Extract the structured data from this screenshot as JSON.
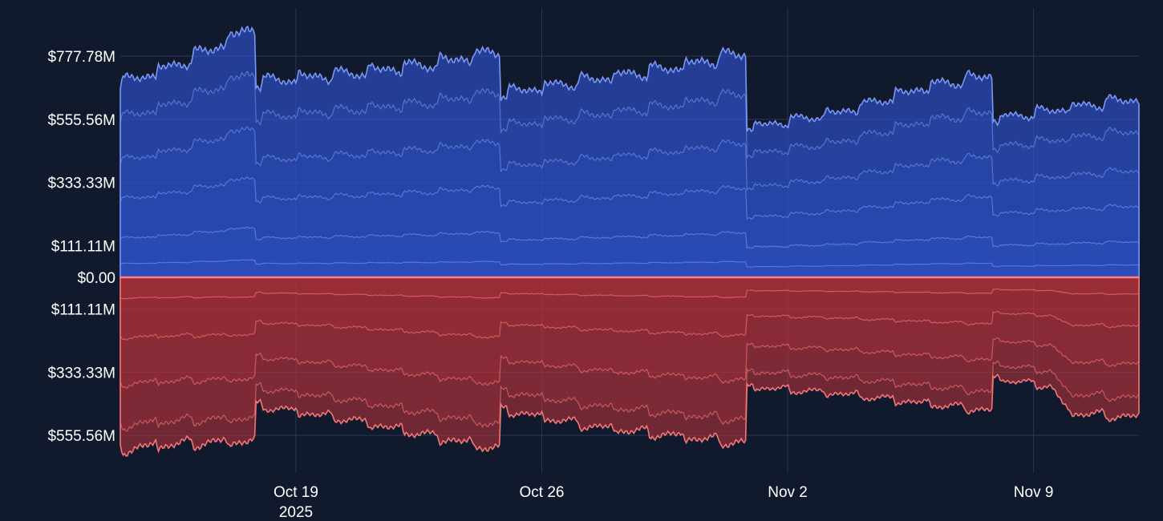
{
  "chart_data": {
    "type": "area",
    "description_note": "",
    "x_domain": [
      "2025-10-14",
      "2025-11-12"
    ],
    "y_ticks": [
      {
        "value": 777.78,
        "label": "$777.78M"
      },
      {
        "value": 555.56,
        "label": "$555.56M"
      },
      {
        "value": 333.33,
        "label": "$333.33M"
      },
      {
        "value": 111.11,
        "label": "$111.11M"
      },
      {
        "value": 0,
        "label": "$0.00"
      },
      {
        "value": -111.11,
        "label": "$111.11M"
      },
      {
        "value": -333.33,
        "label": "$333.33M"
      },
      {
        "value": -555.56,
        "label": "$555.56M"
      }
    ],
    "ylim": [
      -640,
      880
    ],
    "x_ticks": [
      {
        "date": "2025-10-19",
        "label": "Oct 19",
        "sublabel": "2025"
      },
      {
        "date": "2025-10-26",
        "label": "Oct 26",
        "sublabel": ""
      },
      {
        "date": "2025-11-02",
        "label": "Nov 2",
        "sublabel": ""
      },
      {
        "date": "2025-11-09",
        "label": "Nov 9",
        "sublabel": ""
      }
    ],
    "resets": [
      "2025-10-17T20:00",
      "2025-10-24T20:00",
      "2025-10-31T20:00",
      "2025-11-07T20:00"
    ],
    "grid": true,
    "legend": "none",
    "colors": {
      "background": "#111a2d",
      "positive_fill": "#2f55d4",
      "positive_line": "#7f9dff",
      "negative_fill": "#c0343c",
      "negative_line": "#ff7a7a",
      "zero_line": "#ff8080",
      "grid": "#2a3656"
    },
    "positive_envelope": [
      {
        "date": "2025-10-14T00:00",
        "top": 675
      },
      {
        "date": "2025-10-15T12:00",
        "top": 735
      },
      {
        "date": "2025-10-16T12:00",
        "top": 790
      },
      {
        "date": "2025-10-17T20:00",
        "top": 875
      },
      {
        "date": "2025-10-17T20:01",
        "top": 680
      },
      {
        "date": "2025-10-20T12:00",
        "top": 710
      },
      {
        "date": "2025-10-23T00:00",
        "top": 745
      },
      {
        "date": "2025-10-24T20:00",
        "top": 790
      },
      {
        "date": "2025-10-24T20:01",
        "top": 640
      },
      {
        "date": "2025-10-27T12:00",
        "top": 690
      },
      {
        "date": "2025-10-30T00:00",
        "top": 735
      },
      {
        "date": "2025-10-31T20:00",
        "top": 785
      },
      {
        "date": "2025-10-31T20:01",
        "top": 520
      },
      {
        "date": "2025-11-03T12:00",
        "top": 575
      },
      {
        "date": "2025-11-06T00:00",
        "top": 665
      },
      {
        "date": "2025-11-07T20:00",
        "top": 705
      },
      {
        "date": "2025-11-07T20:01",
        "top": 550
      },
      {
        "date": "2025-11-10T00:00",
        "top": 590
      },
      {
        "date": "2025-11-12T00:00",
        "top": 625
      }
    ],
    "negative_envelope": [
      {
        "date": "2025-10-14T00:00",
        "bottom": -600
      },
      {
        "date": "2025-10-15T12:00",
        "bottom": -580
      },
      {
        "date": "2025-10-17T20:00",
        "bottom": -570
      },
      {
        "date": "2025-10-17T20:01",
        "bottom": -445
      },
      {
        "date": "2025-10-20T12:00",
        "bottom": -495
      },
      {
        "date": "2025-10-24T20:00",
        "bottom": -600
      },
      {
        "date": "2025-10-24T20:01",
        "bottom": -460
      },
      {
        "date": "2025-10-27T12:00",
        "bottom": -520
      },
      {
        "date": "2025-10-31T20:00",
        "bottom": -580
      },
      {
        "date": "2025-10-31T20:01",
        "bottom": -380
      },
      {
        "date": "2025-11-03T12:00",
        "bottom": -405
      },
      {
        "date": "2025-11-06T00:00",
        "bottom": -440
      },
      {
        "date": "2025-11-07T20:00",
        "bottom": -465
      },
      {
        "date": "2025-11-07T20:01",
        "bottom": -350
      },
      {
        "date": "2025-11-09T12:00",
        "bottom": -380
      },
      {
        "date": "2025-11-10T00:00",
        "bottom": -470
      },
      {
        "date": "2025-11-12T00:00",
        "bottom": -490
      }
    ],
    "positive_layers": [
      0.82,
      0.6,
      0.4,
      0.2,
      0.07
    ],
    "negative_layers": [
      0.86,
      0.62,
      0.35,
      0.12
    ]
  }
}
